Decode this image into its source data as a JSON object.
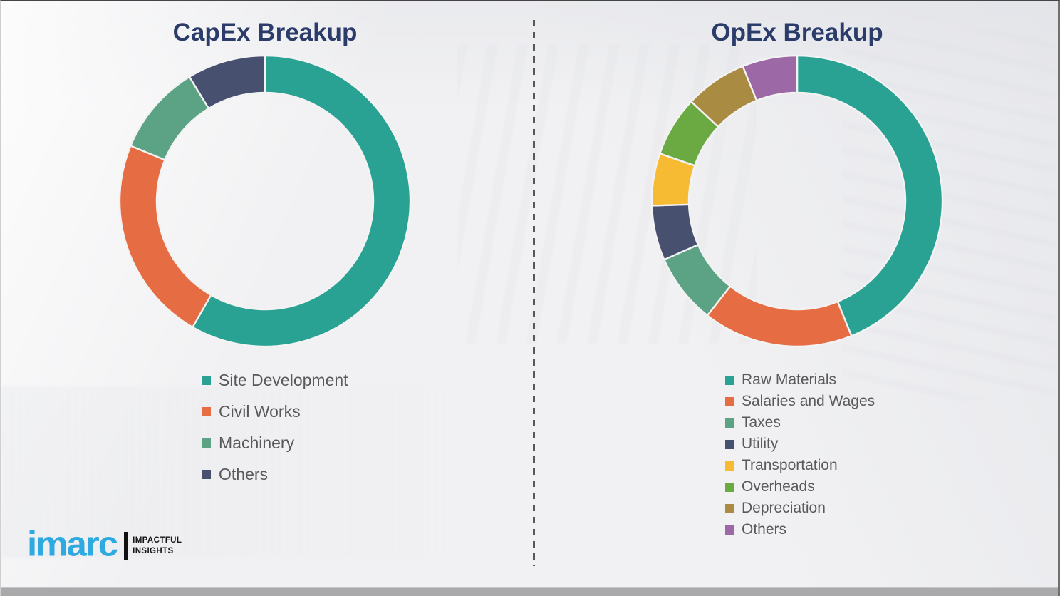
{
  "page": {
    "background_color": "#f1f1f3",
    "title_color": "#2b3c6b",
    "legend_text_color": "#595959"
  },
  "separator": {
    "orientation": "vertical",
    "style": "dashed",
    "color": "#56575b"
  },
  "logo": {
    "brand": "imarc",
    "brand_color": "#2faae1",
    "tagline_line1": "IMPACTFUL",
    "tagline_line2": "INSIGHTS"
  },
  "chart_data": [
    {
      "type": "pie",
      "subtype": "donut",
      "title": "CapEx Breakup",
      "labels": [
        "Site Development",
        "Civil Works",
        "Machinery",
        "Others"
      ],
      "values": [
        58.3,
        22.9,
        10.1,
        8.7
      ],
      "unit": "percent-of-ring",
      "colors": [
        "#29a293",
        "#e66c43",
        "#5ca284",
        "#47506e"
      ],
      "start_angle_deg": 0,
      "direction": "clockwise",
      "legend_position": "below",
      "data_labels": "none"
    },
    {
      "type": "pie",
      "subtype": "donut",
      "title": "OpEx Breakup",
      "labels": [
        "Raw Materials",
        "Salaries and Wages",
        "Taxes",
        "Utility",
        "Transportation",
        "Overheads",
        "Depreciation",
        "Others"
      ],
      "values": [
        43.9,
        16.7,
        7.8,
        6.1,
        5.8,
        6.7,
        6.9,
        6.1
      ],
      "unit": "percent-of-ring",
      "colors": [
        "#29a293",
        "#e66c43",
        "#5ca284",
        "#47506e",
        "#f6bb33",
        "#6baa43",
        "#a98b41",
        "#9c68a6"
      ],
      "start_angle_deg": 0,
      "direction": "clockwise",
      "legend_position": "below",
      "data_labels": "none"
    }
  ]
}
